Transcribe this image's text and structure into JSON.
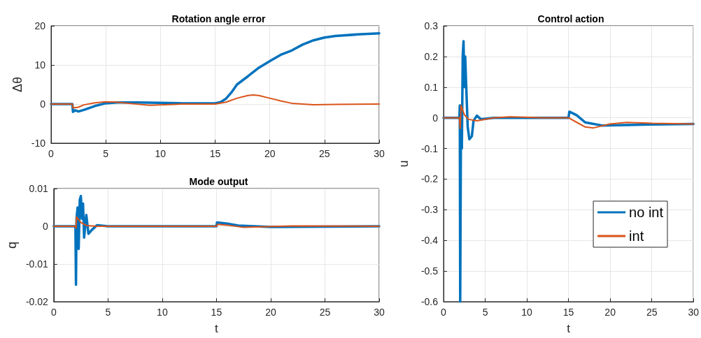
{
  "chart_data": [
    {
      "type": "line",
      "title": "Rotation angle error",
      "ylabel": "Δθ",
      "xlim": [
        0,
        30
      ],
      "xticks": [
        0,
        5,
        10,
        15,
        20,
        25,
        30
      ],
      "ylim": [
        -10,
        20
      ],
      "yticks": [
        -10,
        0,
        10,
        20
      ],
      "grid": true,
      "legend": false,
      "line_style": "solid",
      "marker": "none",
      "series": [
        {
          "color": "#0072bd",
          "x": [
            0,
            1.95,
            2.0,
            2.2,
            2.5,
            3,
            3.5,
            4,
            5,
            6,
            8,
            10,
            12,
            15,
            15.5,
            16,
            16.5,
            17,
            18,
            19,
            20,
            21,
            22,
            23,
            24,
            25,
            26,
            28,
            30
          ],
          "values": [
            0,
            0,
            -2,
            -1.6,
            -1.9,
            -1.5,
            -1,
            -0.5,
            0.2,
            0.4,
            0.4,
            0.3,
            0.2,
            0.2,
            0.5,
            1.4,
            3,
            5,
            7.1,
            9.3,
            11,
            12.6,
            13.7,
            15.2,
            16.3,
            17,
            17.4,
            17.8,
            18.1
          ]
        },
        {
          "color": "#d95319",
          "x": [
            0,
            1.95,
            2.0,
            2.5,
            3,
            4,
            5,
            6,
            7,
            9,
            12,
            15,
            16,
            17,
            18,
            18.5,
            19,
            20,
            21,
            22,
            24,
            26,
            30
          ],
          "values": [
            0,
            0,
            -1,
            -0.8,
            -0.2,
            0.3,
            0.6,
            0.5,
            0.2,
            -0.3,
            0,
            0,
            0.5,
            1.5,
            2.2,
            2.3,
            2.2,
            1.5,
            0.8,
            0.2,
            -0.2,
            -0.1,
            0
          ]
        }
      ]
    },
    {
      "type": "line",
      "title": "Mode output",
      "xlabel": "t",
      "ylabel": "q",
      "xlim": [
        0,
        30
      ],
      "xticks": [
        0,
        5,
        10,
        15,
        20,
        25,
        30
      ],
      "ylim": [
        -0.02,
        0.01
      ],
      "yticks": [
        -0.02,
        -0.01,
        0,
        0.01
      ],
      "grid": true,
      "legend": false,
      "line_style": "solid",
      "marker": "none",
      "series": [
        {
          "color": "#0072bd",
          "x": [
            0,
            2.0,
            2.05,
            2.1,
            2.2,
            2.3,
            2.4,
            2.5,
            2.6,
            2.7,
            2.8,
            3,
            3.2,
            3.5,
            4,
            5,
            15,
            15.05,
            16,
            17,
            20,
            30
          ],
          "values": [
            0,
            0,
            -0.0155,
            0.002,
            0.005,
            -0.006,
            0.007,
            0.008,
            0.002,
            0.006,
            -0.003,
            0.003,
            -0.002,
            -0.001,
            0.0003,
            0,
            0,
            0.001,
            0.0007,
            0.0002,
            -0.0002,
            0
          ]
        },
        {
          "color": "#d95319",
          "x": [
            0,
            2.0,
            2.05,
            2.1,
            2.5,
            3,
            4,
            15,
            15.1,
            16,
            17.5,
            22,
            30
          ],
          "values": [
            0,
            0,
            -0.0005,
            0.0025,
            0.001,
            0.0002,
            0,
            0,
            0.0005,
            0.0003,
            -0.0003,
            0.0001,
            0
          ]
        }
      ]
    },
    {
      "type": "line",
      "title": "Control action",
      "xlabel": "t",
      "ylabel": "u",
      "xlim": [
        0,
        30
      ],
      "xticks": [
        0,
        5,
        10,
        15,
        20,
        25,
        30
      ],
      "ylim": [
        -0.6,
        0.3
      ],
      "yticks": [
        -0.6,
        -0.5,
        -0.4,
        -0.3,
        -0.2,
        -0.1,
        0,
        0.1,
        0.2,
        0.3
      ],
      "grid": true,
      "legend": "right",
      "line_style": "solid",
      "marker": "none",
      "series": [
        {
          "name": "no int",
          "color": "#0072bd",
          "x": [
            0,
            1.9,
            1.95,
            2.0,
            2.1,
            2.2,
            2.3,
            2.4,
            2.5,
            2.6,
            2.7,
            2.9,
            3.1,
            3.4,
            3.6,
            4,
            4.5,
            6,
            15,
            15.1,
            15.5,
            16,
            17,
            19,
            25,
            30
          ],
          "values": [
            0,
            0,
            0.04,
            -0.6,
            0.04,
            -0.1,
            0.2,
            0.25,
            0.1,
            0.2,
            0.12,
            -0.03,
            -0.07,
            -0.06,
            -0.01,
            0.007,
            -0.005,
            0,
            0,
            0.02,
            0.015,
            0.008,
            -0.015,
            -0.025,
            -0.022,
            -0.02
          ]
        },
        {
          "name": "int",
          "color": "#d95319",
          "x": [
            0,
            1.9,
            2.0,
            2.1,
            2.5,
            3,
            4,
            6,
            8,
            12,
            15,
            16,
            17,
            18,
            20,
            22,
            25,
            30
          ],
          "values": [
            0,
            0,
            -0.035,
            0.04,
            0.01,
            -0.005,
            -0.01,
            0,
            0.003,
            0,
            0,
            -0.015,
            -0.03,
            -0.033,
            -0.02,
            -0.015,
            -0.018,
            -0.02
          ]
        }
      ]
    }
  ]
}
